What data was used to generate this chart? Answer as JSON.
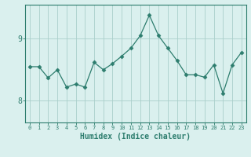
{
  "x": [
    0,
    1,
    2,
    3,
    4,
    5,
    6,
    7,
    8,
    9,
    10,
    11,
    12,
    13,
    14,
    15,
    16,
    17,
    18,
    19,
    20,
    21,
    22,
    23
  ],
  "y": [
    8.55,
    8.55,
    8.37,
    8.5,
    8.22,
    8.27,
    8.22,
    8.62,
    8.5,
    8.6,
    8.72,
    8.85,
    9.05,
    9.38,
    9.05,
    8.85,
    8.65,
    8.42,
    8.42,
    8.38,
    8.58,
    8.12,
    8.58,
    8.78
  ],
  "xlabel": "Humidex (Indice chaleur)",
  "line_color": "#2d7d6e",
  "marker": "D",
  "marker_size": 2.5,
  "bg_color": "#daf0ee",
  "grid_color": "#aacfcb",
  "axis_color": "#2d7d6e",
  "tick_color": "#2d7d6e",
  "ylim": [
    7.65,
    9.55
  ],
  "yticks": [
    8,
    9
  ],
  "xlim": [
    -0.5,
    23.5
  ],
  "xticks": [
    0,
    1,
    2,
    3,
    4,
    5,
    6,
    7,
    8,
    9,
    10,
    11,
    12,
    13,
    14,
    15,
    16,
    17,
    18,
    19,
    20,
    21,
    22,
    23
  ],
  "xtick_fontsize": 5.0,
  "ytick_fontsize": 7.0,
  "xlabel_fontsize": 7.0,
  "linewidth": 0.9
}
